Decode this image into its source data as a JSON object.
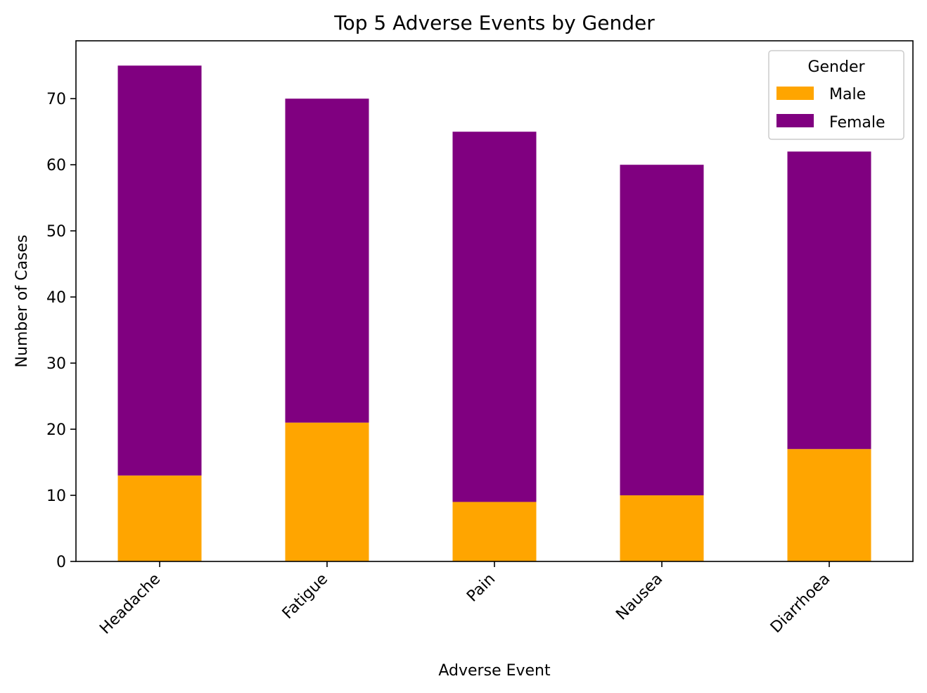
{
  "chart_data": {
    "type": "bar",
    "stacked": true,
    "title": "Top 5 Adverse Events by Gender",
    "xlabel": "Adverse Event",
    "ylabel": "Number of Cases",
    "categories": [
      "Headache",
      "Fatigue",
      "Pain",
      "Nausea",
      "Diarrhoea"
    ],
    "series": [
      {
        "name": "Male",
        "color": "#FFA500",
        "values": [
          13,
          21,
          9,
          10,
          17
        ]
      },
      {
        "name": "Female",
        "color": "#800080",
        "values": [
          62,
          49,
          56,
          50,
          45
        ]
      }
    ],
    "ylim": [
      0,
      78.75
    ],
    "yticks": [
      0,
      10,
      20,
      30,
      40,
      50,
      60,
      70
    ],
    "legend": {
      "title": "Gender",
      "placement": "top-right"
    },
    "grid": false
  }
}
